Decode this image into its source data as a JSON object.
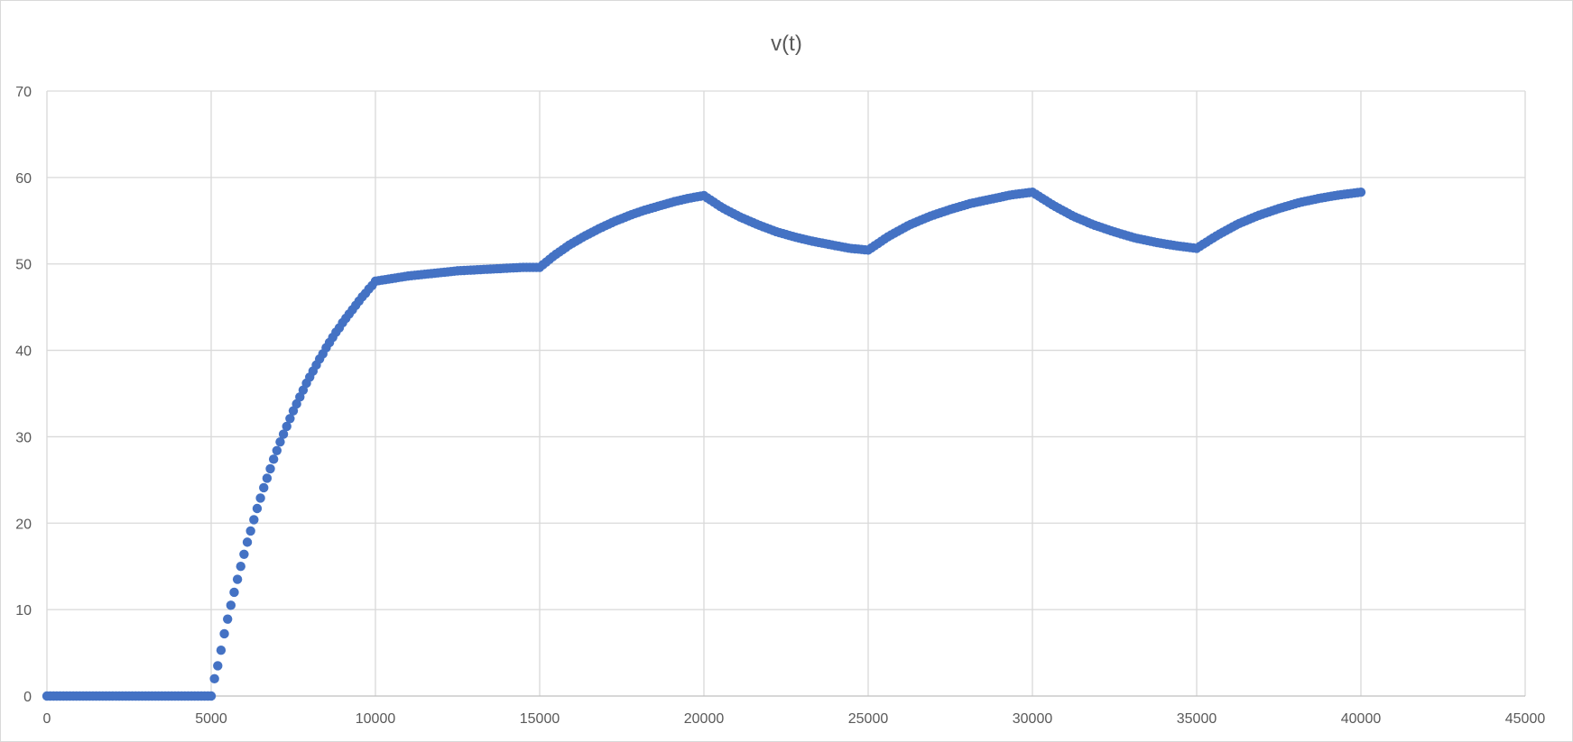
{
  "chart_data": {
    "type": "scatter",
    "title": "v(t)",
    "xlabel": "",
    "ylabel": "",
    "xlim": [
      0,
      45000
    ],
    "ylim": [
      0,
      70
    ],
    "x_ticks": [
      0,
      5000,
      10000,
      15000,
      20000,
      25000,
      30000,
      35000,
      40000,
      45000
    ],
    "y_ticks": [
      0,
      10,
      20,
      30,
      40,
      50,
      60,
      70
    ],
    "grid": true,
    "legend": "none",
    "marker_color": "#4472C4",
    "series": [
      {
        "marker": "circle",
        "sample_step": 100,
        "segments": [
          {
            "x_start": 0,
            "x_end": 5000,
            "values": [
              0,
              0
            ]
          },
          {
            "x_start": 5000,
            "x_end": 10000,
            "values": [
              0,
              2,
              3.5,
              5.3,
              7.2,
              8.9,
              10.5,
              12,
              13.5,
              15,
              16.4,
              17.8,
              19.1,
              20.4,
              21.7,
              22.9,
              24.1,
              25.2,
              26.3,
              27.4,
              28.4,
              29.4,
              30.3,
              31.2,
              32.1,
              33,
              33.8,
              34.6,
              35.4,
              36.2,
              36.9,
              37.6,
              38.3,
              39,
              39.6,
              40.3,
              40.9,
              41.5,
              42.1,
              42.6,
              43.2,
              43.7,
              44.2,
              44.7,
              45.2,
              45.7,
              46.2,
              46.6,
              47.1,
              47.5,
              48
            ]
          },
          {
            "x_start": 10000,
            "x_end": 15000,
            "values": [
              48,
              48.3,
              48.6,
              48.8,
              49,
              49.2,
              49.3,
              49.4,
              49.5,
              49.6,
              49.6
            ]
          },
          {
            "x_start": 15000,
            "x_end": 20000,
            "values": [
              49.6,
              51,
              52.2,
              53.2,
              54.1,
              54.9,
              55.6,
              56.2,
              56.7,
              57.2,
              57.6,
              57.9
            ]
          },
          {
            "x_start": 20000,
            "x_end": 25000,
            "values": [
              57.9,
              56.5,
              55.4,
              54.5,
              53.7,
              53.1,
              52.6,
              52.2,
              51.8,
              51.6
            ]
          },
          {
            "x_start": 25000,
            "x_end": 30000,
            "values": [
              51.6,
              53.2,
              54.5,
              55.5,
              56.3,
              57,
              57.5,
              58,
              58.3
            ]
          },
          {
            "x_start": 30000,
            "x_end": 35000,
            "values": [
              58.3,
              56.8,
              55.5,
              54.5,
              53.7,
              53,
              52.5,
              52.1,
              51.8
            ]
          },
          {
            "x_start": 35000,
            "x_end": 40000,
            "values": [
              51.8,
              53.3,
              54.6,
              55.6,
              56.4,
              57.1,
              57.6,
              58,
              58.3
            ]
          }
        ]
      }
    ]
  }
}
